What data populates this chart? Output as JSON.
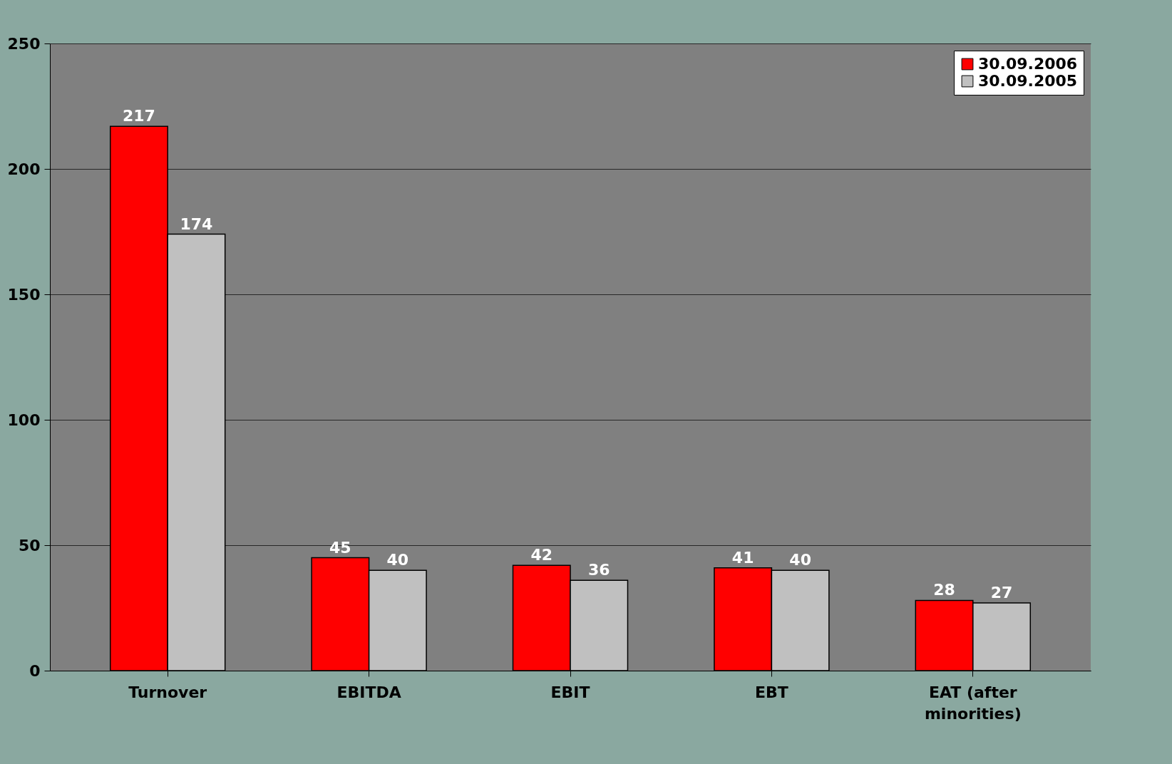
{
  "chart_data": {
    "type": "bar",
    "categories": [
      "Turnover",
      "EBITDA",
      "EBIT",
      "EBT",
      "EAT (after minorities)"
    ],
    "series": [
      {
        "name": "30.09.2006",
        "color": "#ff0000",
        "values": [
          217,
          45,
          42,
          41,
          28
        ]
      },
      {
        "name": "30.09.2005",
        "color": "#c0c0c0",
        "values": [
          174,
          40,
          36,
          40,
          27
        ]
      }
    ],
    "ylim": [
      0,
      250
    ],
    "yticks": [
      0,
      50,
      100,
      150,
      200,
      250
    ],
    "grid": "y",
    "legend": "top right",
    "data_labels": true
  }
}
